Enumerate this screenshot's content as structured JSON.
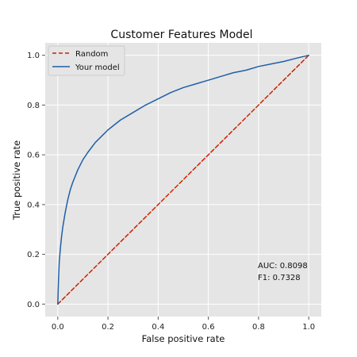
{
  "chart_data": {
    "type": "line",
    "title": "Customer Features Model",
    "xlabel": "False positive rate",
    "ylabel": "True positive rate",
    "xlim": [
      -0.05,
      1.05
    ],
    "ylim": [
      -0.05,
      1.05
    ],
    "xticks": [
      0.0,
      0.2,
      0.4,
      0.6,
      0.8,
      1.0
    ],
    "yticks": [
      0.0,
      0.2,
      0.4,
      0.6,
      0.8,
      1.0
    ],
    "xtick_labels": [
      "0.0",
      "0.2",
      "0.4",
      "0.6",
      "0.8",
      "1.0"
    ],
    "ytick_labels": [
      "0.0",
      "0.2",
      "0.4",
      "0.6",
      "0.8",
      "1.0"
    ],
    "grid": true,
    "legend_position": "top-left",
    "series": [
      {
        "name": "Random",
        "style": "dashed",
        "color": "#cc2200",
        "x": [
          0.0,
          1.0
        ],
        "y": [
          0.0,
          1.0
        ]
      },
      {
        "name": "Your model",
        "style": "solid",
        "color": "#1f5fa8",
        "x": [
          0.0,
          0.003,
          0.006,
          0.01,
          0.015,
          0.02,
          0.03,
          0.04,
          0.05,
          0.06,
          0.08,
          0.1,
          0.12,
          0.15,
          0.18,
          0.2,
          0.25,
          0.3,
          0.35,
          0.4,
          0.45,
          0.5,
          0.55,
          0.6,
          0.65,
          0.7,
          0.75,
          0.8,
          0.85,
          0.9,
          0.95,
          1.0
        ],
        "y": [
          0.0,
          0.1,
          0.17,
          0.22,
          0.27,
          0.31,
          0.37,
          0.42,
          0.46,
          0.49,
          0.54,
          0.58,
          0.61,
          0.65,
          0.68,
          0.7,
          0.74,
          0.77,
          0.8,
          0.825,
          0.85,
          0.87,
          0.885,
          0.9,
          0.915,
          0.93,
          0.94,
          0.955,
          0.965,
          0.975,
          0.988,
          1.0
        ]
      }
    ],
    "annotations": [
      "AUC: 0.8098",
      "F1: 0.7328"
    ]
  }
}
